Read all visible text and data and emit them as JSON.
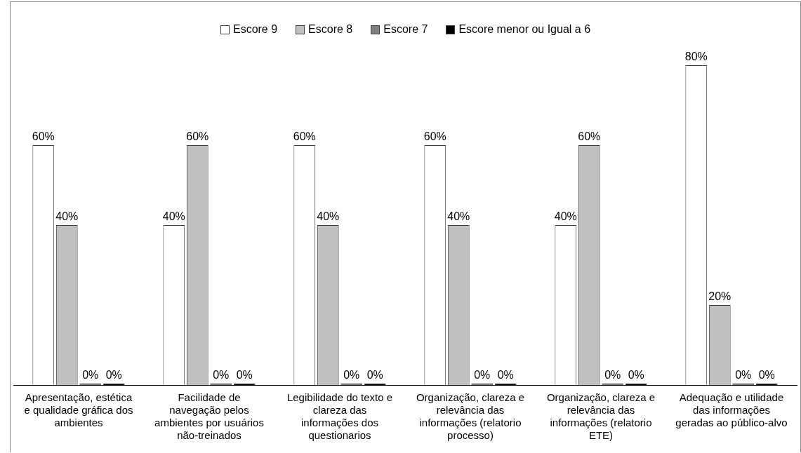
{
  "chart_data": {
    "type": "bar",
    "categories": [
      "Apresentação, estética e qualidade gráfica dos ambientes",
      "Facilidade de navegação pelos ambientes por usuários não-treinados",
      "Legibilidade do texto e clareza das informações dos questionarios",
      "Organização, clareza e relevância das informações (relatorio processo)",
      "Organização, clareza e relevância das informações (relatorio ETE)",
      "Adequação e utilidade das informações geradas ao público-alvo"
    ],
    "series": [
      {
        "name": "Escore 9",
        "color": "#ffffff",
        "values": [
          60,
          40,
          60,
          60,
          40,
          80
        ],
        "value_labels": [
          "60%",
          "40%",
          "60%",
          "60%",
          "40%",
          "80%"
        ]
      },
      {
        "name": "Escore 8",
        "color": "#c0c0c0",
        "values": [
          40,
          60,
          40,
          40,
          60,
          20
        ],
        "value_labels": [
          "40%",
          "60%",
          "40%",
          "40%",
          "60%",
          "20%"
        ]
      },
      {
        "name": "Escore 7",
        "color": "#808080",
        "values": [
          0,
          0,
          0,
          0,
          0,
          0
        ],
        "value_labels": [
          "0%",
          "0%",
          "0%",
          "0%",
          "0%",
          "0%"
        ]
      },
      {
        "name": "Escore menor ou Igual a 6",
        "color": "#000000",
        "values": [
          0,
          0,
          0,
          0,
          0,
          0
        ],
        "value_labels": [
          "0%",
          "0%",
          "0%",
          "0%",
          "0%",
          "0%"
        ]
      }
    ],
    "legend": "top",
    "grid": false
  }
}
